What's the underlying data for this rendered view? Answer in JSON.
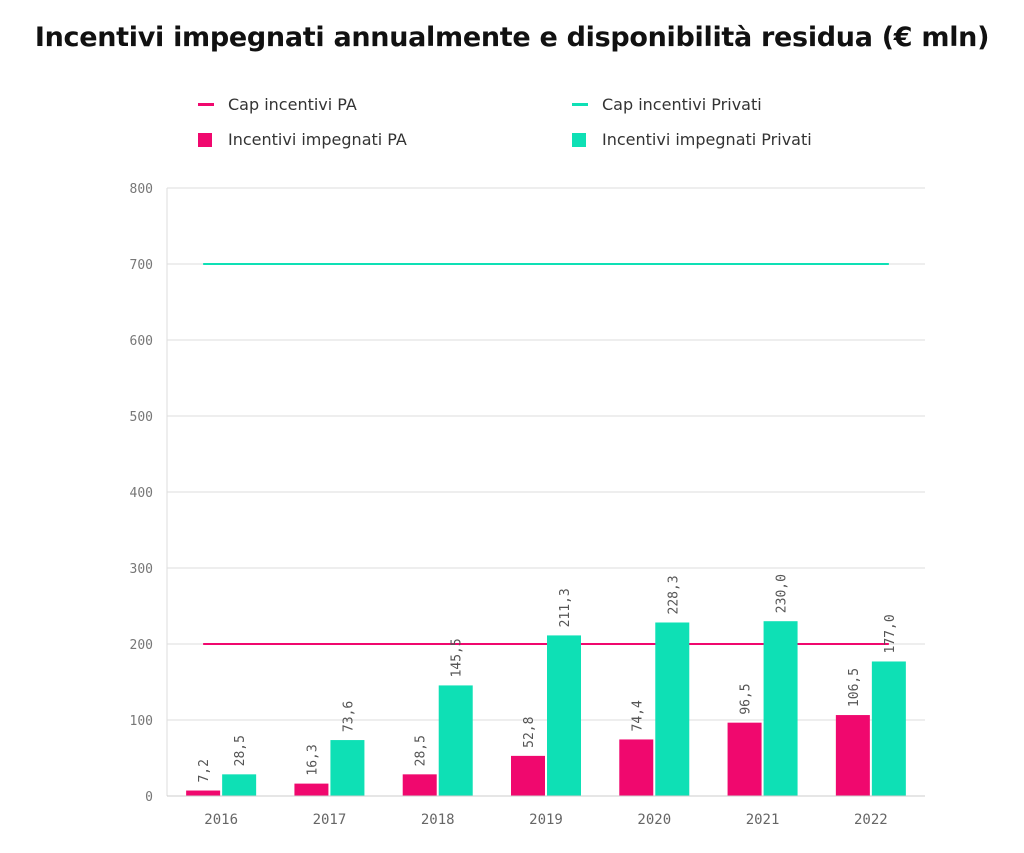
{
  "title": "Incentivi impegnati annualmente e disponibilità residua (€ mln)",
  "colors": {
    "pa": "#f0086e",
    "privati": "#0ee0b5",
    "grid": "#dddddd",
    "axis": "#999999"
  },
  "legend": {
    "cap_pa": "Cap incentivi PA",
    "cap_privati": "Cap incentivi Privati",
    "imp_pa": "Incentivi impegnati PA",
    "imp_privati": "Incentivi impegnati Privati"
  },
  "chart_data": {
    "type": "bar",
    "title": "Incentivi impegnati annualmente e disponibilità residua (€ mln)",
    "xlabel": "",
    "ylabel": "",
    "ylim": [
      0,
      800
    ],
    "yticks": [
      "0",
      "100",
      "200",
      "300",
      "400",
      "500",
      "600",
      "700",
      "800"
    ],
    "categories": [
      "2016",
      "2017",
      "2018",
      "2019",
      "2020",
      "2021",
      "2022"
    ],
    "series": [
      {
        "name": "Incentivi impegnati PA",
        "kind": "bar",
        "color": "#f0086e",
        "values": [
          7.2,
          16.3,
          28.5,
          52.8,
          74.4,
          96.5,
          106.5
        ],
        "labels": [
          "7,2",
          "16,3",
          "28,5",
          "52,8",
          "74,4",
          "96,5",
          "106,5"
        ]
      },
      {
        "name": "Incentivi impegnati Privati",
        "kind": "bar",
        "color": "#0ee0b5",
        "values": [
          28.5,
          73.6,
          145.5,
          211.3,
          228.3,
          230.0,
          177.0
        ],
        "labels": [
          "28,5",
          "73,6",
          "145,5",
          "211,3",
          "228,3",
          "230,0",
          "177,0"
        ]
      },
      {
        "name": "Cap incentivi PA",
        "kind": "line",
        "color": "#f0086e",
        "value": 200
      },
      {
        "name": "Cap incentivi Privati",
        "kind": "line",
        "color": "#0ee0b5",
        "value": 700
      }
    ],
    "grid": true,
    "legend_position": "top"
  }
}
